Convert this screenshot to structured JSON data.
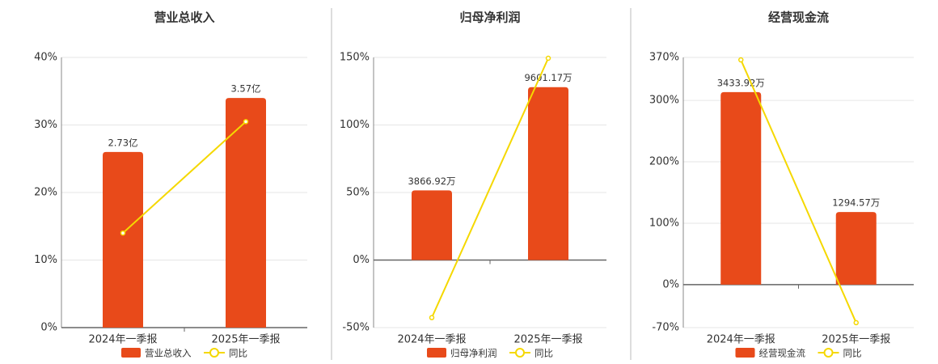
{
  "chart_data": [
    {
      "type": "bar",
      "title": "营业总收入",
      "categories": [
        "2024年一季报",
        "2025年一季报"
      ],
      "series": [
        {
          "name": "营业总收入",
          "type": "bar",
          "axis": "y2",
          "color": "#e84a1a",
          "values": [
            2.73,
            3.57
          ],
          "value_labels": [
            "2.73亿",
            "3.57亿"
          ]
        },
        {
          "name": "同比",
          "type": "line",
          "color": "#f5d800",
          "values": [
            14.0,
            30.5
          ]
        }
      ],
      "ylim": [
        0,
        40
      ],
      "yticks": [
        {
          "value": 0,
          "label": "0%"
        },
        {
          "value": 10,
          "label": "10%"
        },
        {
          "value": 20,
          "label": "20%"
        },
        {
          "value": 30,
          "label": "30%"
        },
        {
          "value": 40,
          "label": "40%"
        }
      ],
      "y2lim": [
        0,
        4.2
      ],
      "grid": true
    },
    {
      "type": "bar",
      "title": "归母净利润",
      "categories": [
        "2024年一季报",
        "2025年一季报"
      ],
      "series": [
        {
          "name": "归母净利润",
          "type": "bar",
          "axis": "y2",
          "color": "#e84a1a",
          "values": [
            3866.92,
            9601.17
          ],
          "value_labels": [
            "3866.92万",
            "9601.17万"
          ]
        },
        {
          "name": "同比",
          "type": "line",
          "color": "#f5d800",
          "values": [
            -42.6,
            149.4
          ]
        }
      ],
      "ylim": [
        -50,
        150
      ],
      "yticks": [
        {
          "value": -50,
          "label": "-50%"
        },
        {
          "value": 0,
          "label": "0%"
        },
        {
          "value": 50,
          "label": "50%"
        },
        {
          "value": 100,
          "label": "100%"
        },
        {
          "value": 150,
          "label": "150%"
        }
      ],
      "y2lim": [
        -3750,
        11250
      ],
      "grid": true
    },
    {
      "type": "bar",
      "title": "经营现金流",
      "categories": [
        "2024年一季报",
        "2025年一季报"
      ],
      "series": [
        {
          "name": "经营现金流",
          "type": "bar",
          "axis": "y2",
          "color": "#e84a1a",
          "values": [
            3433.92,
            1294.57
          ],
          "value_labels": [
            "3433.92万",
            "1294.57万"
          ]
        },
        {
          "name": "同比",
          "type": "line",
          "color": "#f5d800",
          "values": [
            366,
            -62
          ]
        }
      ],
      "ylim": [
        -70,
        370
      ],
      "yticks": [
        {
          "value": -70,
          "label": "-70%"
        },
        {
          "value": 0,
          "label": "0%"
        },
        {
          "value": 100,
          "label": "100%"
        },
        {
          "value": 200,
          "label": "200%"
        },
        {
          "value": 300,
          "label": "300%"
        },
        {
          "value": 370,
          "label": "370%"
        }
      ],
      "y2lim": [
        -766.5,
        4051.5
      ],
      "grid": true
    }
  ]
}
